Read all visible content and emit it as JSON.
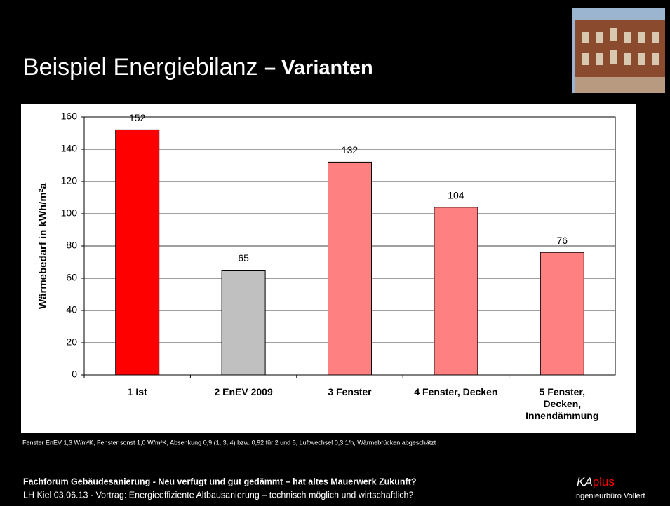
{
  "slide": {
    "title": "Beispiel Energiebilanz",
    "title_emphasis": "– Varianten",
    "note": "Fenster EnEV 1,3 W/m²K, Fenster sonst 1,0 W/m²K, Absenkung 0,9 (1, 3, 4) bzw. 0,92 für 2 und 5, Luftwechsel 0,3 1/h, Wärmebrücken abgeschätzt",
    "footer": {
      "line1": "Fachforum Gebäudesanierung - Neu verfugt und gut gedämmt – hat altes Mauerwerk Zukunft?",
      "line2": "LH Kiel 03.06.13 - Vortrag: Energieeffiziente Altbausanierung – technisch möglich und wirtschaftlich?",
      "brand_a": "KA",
      "brand_b": "plus",
      "company": "Ingenieurbüro Vollert"
    }
  },
  "chart_data": {
    "type": "bar",
    "y_label": "Wärmebedarf in kWh/m²a",
    "categories": [
      "1 Ist",
      "2 EnEV 2009",
      "3 Fenster",
      "4 Fenster, Decken",
      "5 Fenster, Decken, Innendämmung"
    ],
    "values": [
      152,
      65,
      132,
      104,
      76
    ],
    "colors": [
      "#ff0000",
      "#c0c0c0",
      "#ff8080",
      "#ff8080",
      "#ff8080"
    ],
    "ylim": [
      0,
      160
    ],
    "yticks": [
      0,
      20,
      40,
      60,
      80,
      100,
      120,
      140,
      160
    ],
    "grid": true
  }
}
